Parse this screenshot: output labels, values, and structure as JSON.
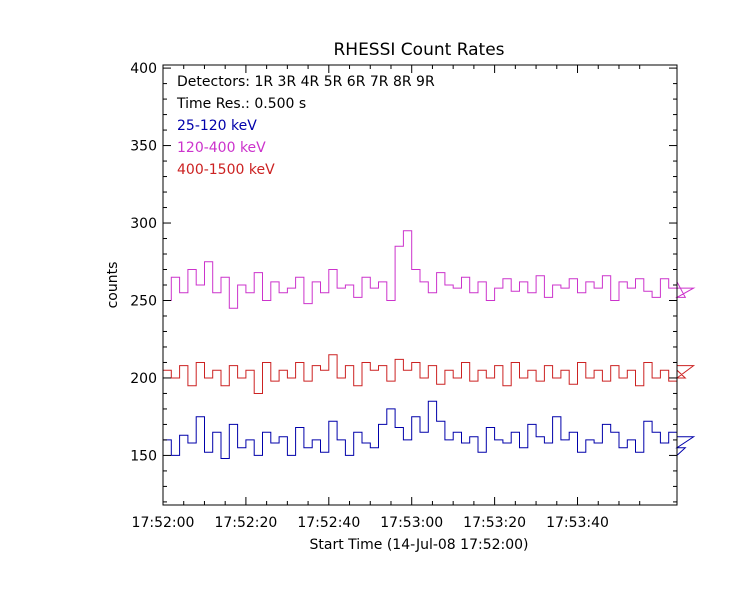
{
  "chart_data": {
    "type": "line",
    "title": "RHESSI Count Rates",
    "xlabel": "Start Time (14-Jul-08 17:52:00)",
    "ylabel": "counts",
    "x_range_seconds": [
      0,
      124
    ],
    "ylim": [
      118,
      402
    ],
    "x_ticks": [
      {
        "label": "17:52:00",
        "t": 0
      },
      {
        "label": "17:52:20",
        "t": 20
      },
      {
        "label": "17:52:40",
        "t": 40
      },
      {
        "label": "17:53:00",
        "t": 60
      },
      {
        "label": "17:53:20",
        "t": 80
      },
      {
        "label": "17:53:40",
        "t": 100
      }
    ],
    "y_ticks": [
      150,
      200,
      250,
      300,
      350,
      400
    ],
    "annotations": [
      "Detectors:  1R 3R 4R 5R 6R 7R 8R 9R",
      "Time Res.: 0.500 s"
    ],
    "series": [
      {
        "name": "25-120 keV",
        "color": "#0000aa",
        "x_step_seconds": 2,
        "values": [
          160,
          150,
          163,
          158,
          175,
          152,
          165,
          148,
          170,
          155,
          160,
          150,
          165,
          158,
          162,
          150,
          168,
          155,
          160,
          152,
          172,
          160,
          150,
          165,
          158,
          155,
          170,
          180,
          168,
          160,
          175,
          165,
          185,
          172,
          160,
          165,
          158,
          162,
          152,
          168,
          160,
          158,
          165,
          155,
          170,
          162,
          158,
          175,
          160,
          165,
          152,
          160,
          158,
          170,
          165,
          155,
          160,
          152,
          172,
          165,
          158,
          165,
          150,
          155,
          162
        ]
      },
      {
        "name": "120-400 keV",
        "color": "#cc33cc",
        "x_step_seconds": 2,
        "values": [
          250,
          265,
          255,
          270,
          260,
          275,
          255,
          265,
          245,
          260,
          255,
          268,
          250,
          262,
          255,
          258,
          265,
          248,
          262,
          255,
          270,
          258,
          260,
          252,
          265,
          258,
          262,
          250,
          285,
          295,
          270,
          262,
          255,
          268,
          260,
          258,
          265,
          255,
          262,
          250,
          258,
          264,
          256,
          262,
          255,
          266,
          252,
          260,
          258,
          264,
          255,
          262,
          258,
          266,
          250,
          262,
          258,
          264,
          256,
          252,
          264,
          258,
          262,
          252,
          258
        ]
      },
      {
        "name": "400-1500 keV",
        "color": "#cc2222",
        "x_step_seconds": 2,
        "values": [
          205,
          200,
          208,
          195,
          210,
          200,
          205,
          195,
          208,
          200,
          205,
          190,
          210,
          198,
          205,
          200,
          210,
          198,
          208,
          205,
          215,
          200,
          208,
          195,
          210,
          205,
          208,
          198,
          212,
          205,
          210,
          200,
          208,
          196,
          205,
          200,
          210,
          198,
          205,
          200,
          208,
          195,
          210,
          200,
          205,
          198,
          208,
          200,
          205,
          196,
          210,
          200,
          205,
          198,
          208,
          200,
          205,
          195,
          210,
          200,
          205,
          198,
          205,
          200,
          208
        ]
      }
    ]
  }
}
